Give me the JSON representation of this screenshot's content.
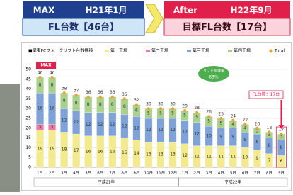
{
  "banner": {
    "before": {
      "tag": "MAX",
      "date": "H21年1月",
      "count": "FL台数【46台】"
    },
    "after": {
      "tag": "After",
      "date": "H22年9月",
      "count": "目標FL台数【17台】"
    }
  },
  "chart_data": {
    "type": "stacked-bar",
    "title": "■関東FCフォークリフト台数推移",
    "categories": [
      "1月",
      "2月",
      "3月",
      "4月",
      "5月",
      "6月",
      "7月",
      "8月",
      "9月",
      "10月",
      "11月",
      "12月",
      "1月",
      "2月",
      "3月",
      "4月",
      "5月",
      "6月",
      "7月",
      "8月",
      "9月"
    ],
    "groups": [
      "平成21年",
      "平成22年"
    ],
    "series": [
      {
        "name": "第一工場",
        "color": "#f2ea8c",
        "values": [
          19,
          19,
          18,
          17,
          16,
          16,
          16,
          15,
          14,
          13,
          13,
          13,
          12,
          11,
          11,
          11,
          11,
          10,
          9,
          7,
          6
        ]
      },
      {
        "name": "第二工場",
        "color": "#e57aa6",
        "values": [
          3,
          3,
          0,
          0,
          0,
          0,
          0,
          0,
          0,
          0,
          0,
          0,
          0,
          0,
          0,
          0,
          0,
          0,
          0,
          0,
          0
        ]
      },
      {
        "name": "第三工場",
        "color": "#7fa3d9",
        "values": [
          16,
          16,
          12,
          12,
          12,
          12,
          12,
          12,
          12,
          12,
          12,
          12,
          12,
          12,
          10,
          9,
          9,
          8,
          8,
          8,
          8
        ]
      },
      {
        "name": "第四工場",
        "color": "#a9d18c",
        "values": [
          8,
          8,
          8,
          8,
          8,
          8,
          8,
          8,
          6,
          5,
          5,
          5,
          5,
          5,
          5,
          5,
          4,
          4,
          3,
          3,
          3
        ]
      }
    ],
    "total": {
      "name": "Total",
      "color": "#f0a030",
      "values": [
        46,
        46,
        38,
        37,
        36,
        36,
        36,
        35,
        32,
        30,
        30,
        30,
        29,
        28,
        26,
        25,
        24,
        22,
        20,
        18,
        17
      ]
    },
    "annotations": {
      "max": "MAX",
      "reduction": "リフト削減率",
      "reduction_value": "63%",
      "target": "FL台数：17台"
    },
    "ylim": [
      0,
      50
    ],
    "yticks": [
      0,
      5,
      10,
      15,
      20,
      25,
      30,
      35,
      40,
      45,
      50
    ],
    "grid": true
  }
}
